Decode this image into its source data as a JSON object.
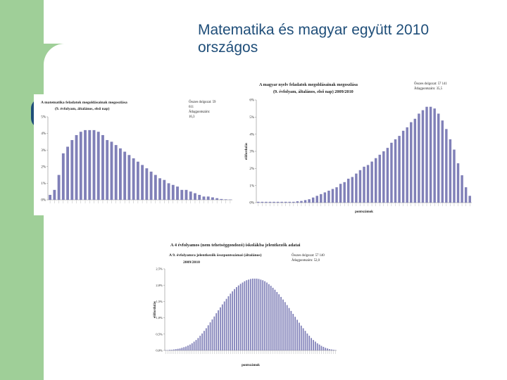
{
  "slide": {
    "title_line1": "Matematika és magyar együtt 2010",
    "title_line2": "országos"
  },
  "colors": {
    "accent_green": "#9fcf98",
    "title_blue": "#1f4e79",
    "bar": "#8080b8"
  },
  "chart_data": [
    {
      "type": "bar",
      "title": "A matematika feladatok megoldásainak megoszlása",
      "subtitle": "(9. évfolyam, általános, első nap)",
      "stats_lines": [
        "Összes dolgozat: 59",
        "611",
        "Átlagpontszám:",
        "16,3"
      ],
      "ytick_labels": [
        "0%",
        "1%",
        "2%",
        "3%",
        "4%",
        "5%"
      ],
      "ylim": [
        0,
        5
      ],
      "values": [
        0.3,
        0.6,
        1.5,
        2.8,
        3.2,
        3.6,
        3.9,
        4.1,
        4.2,
        4.2,
        4.2,
        4.1,
        3.9,
        3.6,
        3.5,
        3.3,
        3.1,
        2.9,
        2.7,
        2.5,
        2.3,
        2.1,
        1.9,
        1.7,
        1.5,
        1.3,
        1.2,
        1.0,
        0.9,
        0.8,
        0.6,
        0.6,
        0.5,
        0.4,
        0.3,
        0.2,
        0.2,
        0.15,
        0.1,
        0.05,
        0.03,
        0.02
      ]
    },
    {
      "type": "bar",
      "title": "A magyar nyelv feladatok megoldásainak megoszlása",
      "subtitle": "(9. évfolyam, általános, első nap) 2009/2010",
      "stats_lines": [
        "Összes dolgozat: 57 141",
        "Átlagpontszám: 35,5"
      ],
      "ylabel": "előfordulás",
      "xlabel": "pontszámok",
      "ytick_labels": [
        "0%",
        "1%",
        "2%",
        "3%",
        "4%",
        "5%",
        "6%"
      ],
      "ylim": [
        0,
        6
      ],
      "values": [
        0.05,
        0.05,
        0.05,
        0.05,
        0.05,
        0.05,
        0.05,
        0.05,
        0.05,
        0.05,
        0.08,
        0.1,
        0.15,
        0.2,
        0.3,
        0.4,
        0.5,
        0.6,
        0.7,
        0.8,
        0.9,
        1.1,
        1.2,
        1.4,
        1.5,
        1.7,
        1.9,
        2.1,
        2.2,
        2.4,
        2.6,
        2.8,
        3.0,
        3.2,
        3.5,
        3.7,
        3.9,
        4.2,
        4.4,
        4.7,
        4.9,
        5.2,
        5.4,
        5.6,
        5.6,
        5.5,
        5.2,
        4.8,
        4.3,
        3.7,
        3.1,
        2.3,
        1.6,
        0.9,
        0.4
      ]
    },
    {
      "type": "bar",
      "header": "A 4 évfolyamos (nem tehetséggondozó) iskolákba jelentkezők adatai",
      "title": "A 9. évfolyamra jelentkezők összpontszámai (általános)",
      "subtitle": "2009/2010",
      "stats_lines": [
        "Összes dolgozat: 57 140",
        "Átlagpontszám: 52,0"
      ],
      "ylabel": "előfordulás",
      "xlabel": "pontszámok",
      "ytick_labels": [
        "0,0%",
        "0,5%",
        "1,0%",
        "1,5%",
        "2,0%",
        "2,5%"
      ],
      "ylim": [
        0,
        2.5
      ],
      "values": [
        0.01,
        0.01,
        0.02,
        0.02,
        0.03,
        0.04,
        0.05,
        0.06,
        0.08,
        0.1,
        0.12,
        0.15,
        0.18,
        0.22,
        0.27,
        0.32,
        0.38,
        0.45,
        0.52,
        0.6,
        0.68,
        0.77,
        0.86,
        0.95,
        1.04,
        1.14,
        1.23,
        1.32,
        1.41,
        1.5,
        1.58,
        1.66,
        1.74,
        1.81,
        1.88,
        1.94,
        1.99,
        2.04,
        2.08,
        2.12,
        2.15,
        2.17,
        2.19,
        2.2,
        2.2,
        2.2,
        2.19,
        2.17,
        2.15,
        2.12,
        2.08,
        2.03,
        1.98,
        1.92,
        1.86,
        1.79,
        1.72,
        1.64,
        1.56,
        1.48,
        1.39,
        1.3,
        1.21,
        1.12,
        1.03,
        0.94,
        0.85,
        0.76,
        0.68,
        0.6,
        0.52,
        0.45,
        0.38,
        0.32,
        0.27,
        0.22,
        0.18,
        0.14,
        0.11,
        0.08,
        0.06,
        0.04,
        0.03,
        0.02,
        0.01
      ]
    }
  ]
}
